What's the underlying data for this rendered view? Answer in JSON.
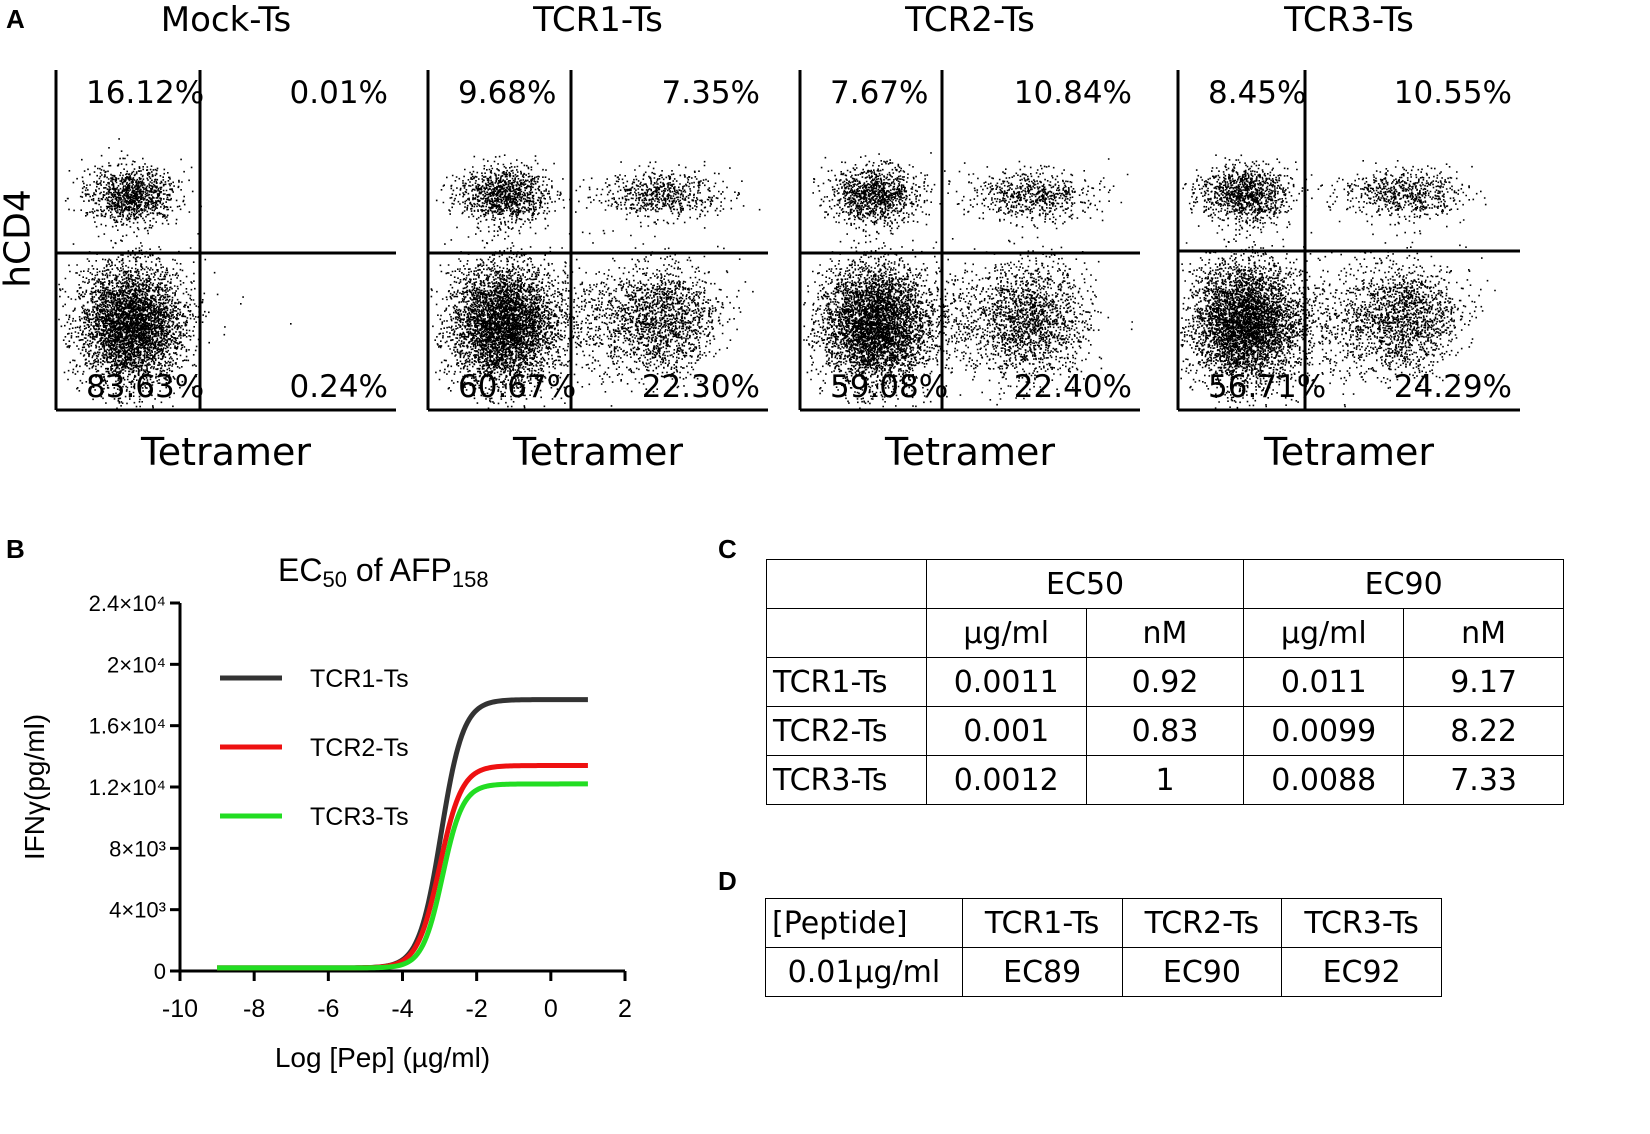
{
  "panels": {
    "a": "A",
    "b": "B",
    "c": "C",
    "d": "D"
  },
  "flow": {
    "y_label": "hCD4",
    "plots": [
      {
        "title": "Mock-Ts",
        "x_label": "Tetramer",
        "ul": "16.12%",
        "ur": "0.01%",
        "ll": "83.63%",
        "lr": "0.24%"
      },
      {
        "title": "TCR1-Ts",
        "x_label": "Tetramer",
        "ul": "9.68%",
        "ur": "7.35%",
        "ll": "60.67%",
        "lr": "22.30%"
      },
      {
        "title": "TCR2-Ts",
        "x_label": "Tetramer",
        "ul": "7.67%",
        "ur": "10.84%",
        "ll": "59.08%",
        "lr": "22.40%"
      },
      {
        "title": "TCR3-Ts",
        "x_label": "Tetramer",
        "ul": "8.45%",
        "ur": "10.55%",
        "ll": "56.71%",
        "lr": "24.29%"
      }
    ]
  },
  "chart_data": {
    "type": "line",
    "title_main": "EC",
    "title_sub1": "50",
    "title_mid": " of AFP",
    "title_sub2": "158",
    "xlabel": "Log [Pep] (µg/ml)",
    "ylabel": "IFNγ(pg/ml)",
    "xlim": [
      -10,
      2
    ],
    "ylim": [
      0,
      24000
    ],
    "x_ticks": [
      -10,
      -8,
      -6,
      -4,
      -2,
      0,
      2
    ],
    "x_tick_labels": [
      "-10",
      "-8",
      "-6",
      "-4",
      "-2",
      "0",
      "2"
    ],
    "y_ticks": [
      0,
      4000,
      8000,
      12000,
      16000,
      20000,
      24000
    ],
    "y_tick_labels": [
      "0",
      "4×10³",
      "8×10³",
      "1.2×10⁴",
      "1.6×10⁴",
      "2×10⁴",
      "2.4×10⁴"
    ],
    "x_range": [
      -9,
      1
    ],
    "series": [
      {
        "name": "TCR1-Ts",
        "color": "#333333",
        "bottom": 200,
        "top": 17700,
        "logEC50": -2.96,
        "hill": 1.0
      },
      {
        "name": "TCR2-Ts",
        "color": "#ee1111",
        "bottom": 200,
        "top": 13400,
        "logEC50": -3.0,
        "hill": 1.0
      },
      {
        "name": "TCR3-Ts",
        "color": "#22dd22",
        "bottom": 200,
        "top": 12200,
        "logEC50": -2.92,
        "hill": 1.1
      }
    ]
  },
  "table_c": {
    "header1": [
      "",
      "EC50",
      "EC90"
    ],
    "header2": [
      "",
      "µg/ml",
      "nM",
      "µg/ml",
      "nM"
    ],
    "rows": [
      [
        "TCR1-Ts",
        "0.0011",
        "0.92",
        "0.011",
        "9.17"
      ],
      [
        "TCR2-Ts",
        "0.001",
        "0.83",
        "0.0099",
        "8.22"
      ],
      [
        "TCR3-Ts",
        "0.0012",
        "1",
        "0.0088",
        "7.33"
      ]
    ]
  },
  "table_d": {
    "header": [
      "[Peptide]",
      "TCR1-Ts",
      "TCR2-Ts",
      "TCR3-Ts"
    ],
    "row": [
      "0.01µg/ml",
      "EC89",
      "EC90",
      "EC92"
    ]
  }
}
